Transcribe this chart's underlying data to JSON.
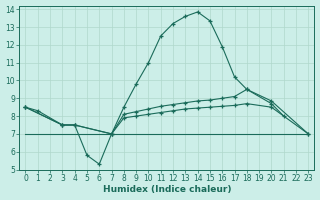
{
  "xlabel": "Humidex (Indice chaleur)",
  "bg_color": "#cceee8",
  "grid_color": "#b0d8cc",
  "line_color": "#1a6b5a",
  "xlim": [
    -0.5,
    23.5
  ],
  "ylim": [
    5,
    14.2
  ],
  "xticks": [
    0,
    1,
    2,
    3,
    4,
    5,
    6,
    7,
    8,
    9,
    10,
    11,
    12,
    13,
    14,
    15,
    16,
    17,
    18,
    19,
    20,
    21,
    22,
    23
  ],
  "yticks": [
    5,
    6,
    7,
    8,
    9,
    10,
    11,
    12,
    13,
    14
  ],
  "lines": [
    {
      "x": [
        0,
        1,
        3,
        4,
        5,
        6,
        7,
        8,
        9,
        10,
        11,
        12,
        13,
        14,
        15,
        16,
        17,
        18,
        20,
        21
      ],
      "y": [
        8.5,
        8.3,
        7.5,
        7.5,
        5.8,
        5.3,
        7.0,
        8.5,
        9.8,
        11.0,
        12.5,
        13.2,
        13.6,
        13.85,
        13.35,
        11.9,
        10.2,
        9.5,
        8.7,
        8.0
      ],
      "marker": true
    },
    {
      "x": [
        0,
        3,
        4,
        7,
        8,
        9,
        10,
        11,
        12,
        13,
        14,
        15,
        16,
        17,
        18,
        20,
        23
      ],
      "y": [
        8.5,
        7.5,
        7.5,
        7.0,
        8.1,
        8.25,
        8.4,
        8.55,
        8.65,
        8.75,
        8.85,
        8.9,
        9.0,
        9.1,
        9.5,
        8.85,
        7.0
      ],
      "marker": true
    },
    {
      "x": [
        0,
        3,
        4,
        7,
        8,
        9,
        10,
        11,
        12,
        13,
        14,
        15,
        16,
        17,
        18,
        20,
        23
      ],
      "y": [
        8.5,
        7.5,
        7.5,
        7.0,
        7.9,
        8.0,
        8.1,
        8.2,
        8.3,
        8.4,
        8.45,
        8.5,
        8.55,
        8.6,
        8.7,
        8.5,
        7.0
      ],
      "marker": true
    },
    {
      "x": [
        0,
        23
      ],
      "y": [
        7.0,
        7.0
      ],
      "marker": false
    }
  ]
}
